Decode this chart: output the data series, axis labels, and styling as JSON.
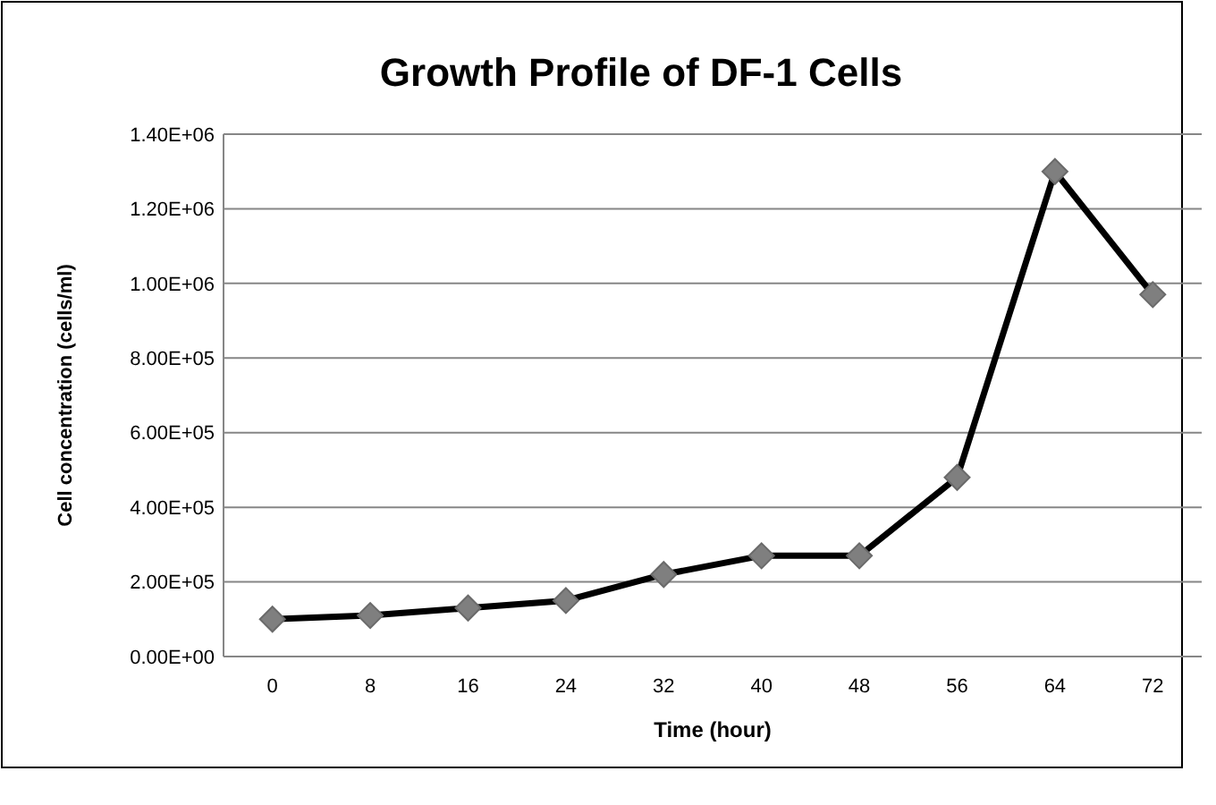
{
  "chart_data": {
    "type": "line",
    "title": "Growth Profile of DF-1 Cells",
    "xlabel": "Time (hour)",
    "ylabel": "Cell concentration  (cells/ml)",
    "categories": [
      "0",
      "8",
      "16",
      "24",
      "32",
      "40",
      "48",
      "56",
      "64",
      "72"
    ],
    "series": [
      {
        "color": "#000000",
        "values": [
          100000,
          110000,
          130000,
          150000,
          220000,
          270000,
          270000,
          480000,
          1300000,
          970000
        ]
      }
    ],
    "ylim": [
      0,
      1400000
    ],
    "yticks": [
      {
        "value": 0,
        "label": "0.00E+00"
      },
      {
        "value": 200000,
        "label": "2.00E+05"
      },
      {
        "value": 400000,
        "label": "4.00E+05"
      },
      {
        "value": 600000,
        "label": "6.00E+05"
      },
      {
        "value": 800000,
        "label": "8.00E+05"
      },
      {
        "value": 1000000,
        "label": "1.00E+06"
      },
      {
        "value": 1200000,
        "label": "1.20E+06"
      },
      {
        "value": 1400000,
        "label": "1.40E+06"
      }
    ],
    "grid": "y",
    "marker": "diamond",
    "line_style": "solid"
  }
}
